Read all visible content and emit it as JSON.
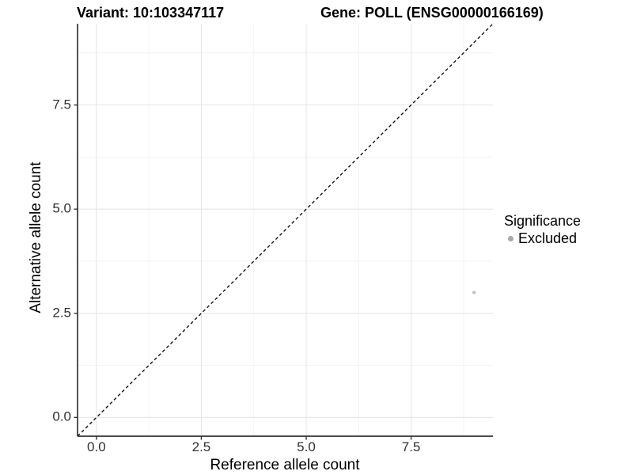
{
  "chart_data": {
    "type": "scatter",
    "titles": {
      "left": "Variant: 10:103347117",
      "right": "Gene: POLL (ENSG00000166169)"
    },
    "xlabel": "Reference allele count",
    "ylabel": "Alternative allele count",
    "xlim": [
      -0.45,
      9.45
    ],
    "ylim": [
      -0.45,
      9.45
    ],
    "xtick_values": [
      0,
      2.5,
      5,
      7.5
    ],
    "xtick_labels": [
      "0.0",
      "2.5",
      "5.0",
      "7.5"
    ],
    "ytick_values": [
      0,
      2.5,
      5,
      7.5
    ],
    "ytick_labels": [
      "0.0",
      "2.5",
      "5.0",
      "7.5"
    ],
    "minor_tick_values": [
      1.25,
      3.75,
      6.25,
      8.75
    ],
    "grid": "major_and_minor",
    "abline": {
      "intercept": 0,
      "slope": 1,
      "linetype": "dashed"
    },
    "series": [
      {
        "name": "Excluded",
        "color": "#c2c2c2",
        "points": [
          {
            "x": 9,
            "y": 3
          }
        ]
      }
    ],
    "legend": {
      "title": "Significance",
      "position": "right-center",
      "items": [
        {
          "label": "Excluded",
          "color": "#a8a8a8"
        }
      ]
    },
    "colors": {
      "grid_major": "#e6e6e6",
      "grid_minor": "#f2f2f2",
      "axis": "#333333",
      "tick_text": "#303030",
      "abline": "#141414"
    }
  }
}
